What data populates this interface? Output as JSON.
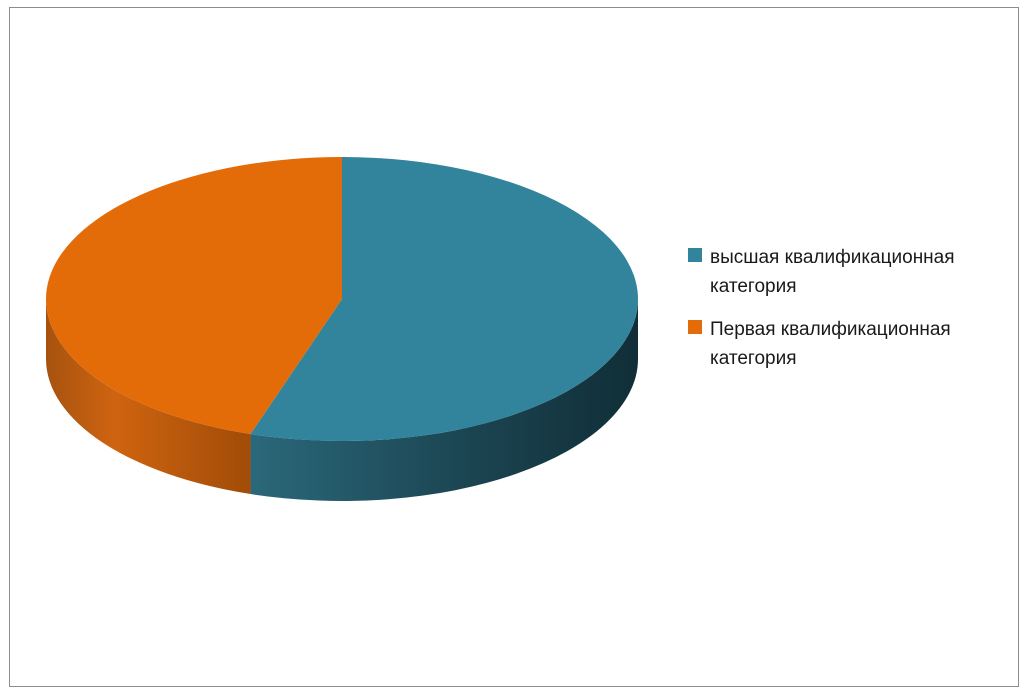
{
  "chart_data": {
    "type": "pie",
    "title": "",
    "style": "3d",
    "legend_position": "right",
    "slices": [
      {
        "label": "высшая квалификационная категория",
        "value": 55,
        "color": "#31849b"
      },
      {
        "label": "Первая квалификационная категория",
        "value": 45,
        "color": "#e36c09"
      }
    ]
  }
}
